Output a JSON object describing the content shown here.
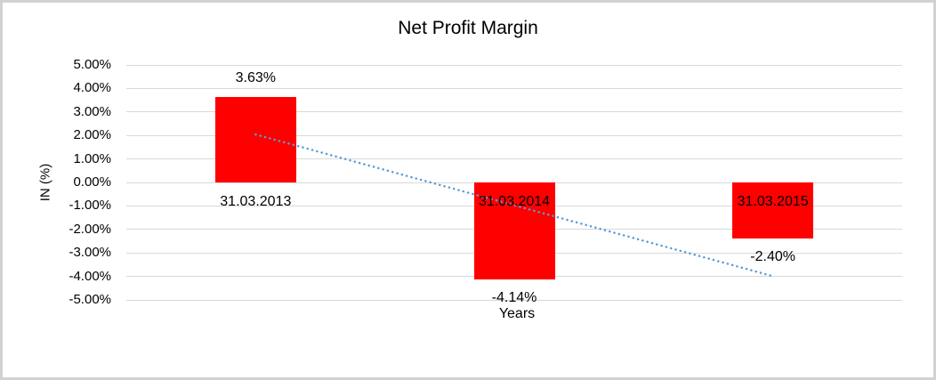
{
  "chart_data": {
    "type": "bar",
    "title": "Net Profit Margin",
    "xlabel": "Years",
    "ylabel": "IN (%)",
    "categories": [
      "31.03.2013",
      "31.03.2014",
      "31.03.2015"
    ],
    "values": [
      3.63,
      -4.14,
      -2.4
    ],
    "data_labels": [
      "3.63%",
      "-4.14%",
      "-2.40%"
    ],
    "ylim": [
      -5,
      5
    ],
    "yticks": [
      {
        "value": 5,
        "label": "5.00%"
      },
      {
        "value": 4,
        "label": "4.00%"
      },
      {
        "value": 3,
        "label": "3.00%"
      },
      {
        "value": 2,
        "label": "2.00%"
      },
      {
        "value": 1,
        "label": "1.00%"
      },
      {
        "value": 0,
        "label": "0.00%"
      },
      {
        "value": -1,
        "label": "-1.00%"
      },
      {
        "value": -2,
        "label": "-2.00%"
      },
      {
        "value": -3,
        "label": "-3.00%"
      },
      {
        "value": -4,
        "label": "-4.00%"
      },
      {
        "value": -5,
        "label": "-5.00%"
      }
    ],
    "grid": true,
    "legend": false,
    "bar_color": "#FF0000",
    "gridline_color": "#D9D9D9",
    "text_color": "#000000",
    "trendline": {
      "type": "linear",
      "style": "dotted",
      "color": "#5B9BD5",
      "start": {
        "category_index": 0,
        "value": 2.04
      },
      "end": {
        "category_index": 2,
        "value": -3.99
      }
    }
  }
}
